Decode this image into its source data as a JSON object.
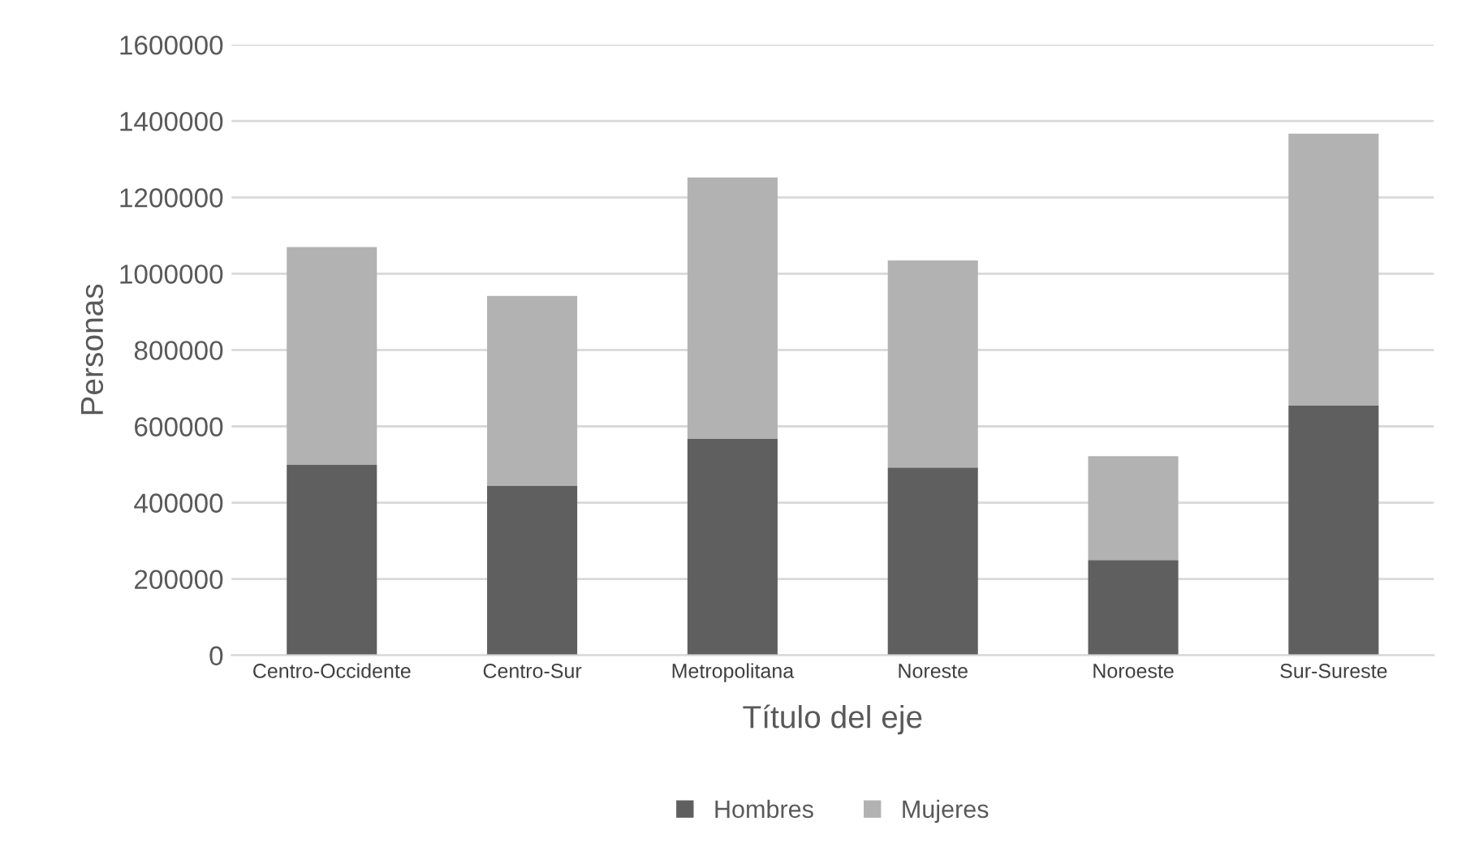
{
  "chart_data": {
    "type": "bar",
    "stacked": true,
    "xlabel": "Título del eje",
    "ylabel": "Personas",
    "categories": [
      "Centro-Occidente",
      "Centro-Sur",
      "Metropolitana",
      "Noreste",
      "Noroeste",
      "Sur-Sureste"
    ],
    "series": [
      {
        "name": "Hombres",
        "color": "#5f5f5f",
        "values": [
          500000,
          445000,
          568000,
          492000,
          250000,
          654000
        ]
      },
      {
        "name": "Mujeres",
        "color": "#b2b2b2",
        "values": [
          570000,
          497000,
          684000,
          543000,
          272000,
          713000
        ]
      }
    ],
    "ylim": [
      0,
      1600000
    ],
    "yticks": [
      0,
      200000,
      400000,
      600000,
      800000,
      1000000,
      1200000,
      1400000,
      1600000
    ],
    "grid": "y",
    "legend": "bottom"
  }
}
